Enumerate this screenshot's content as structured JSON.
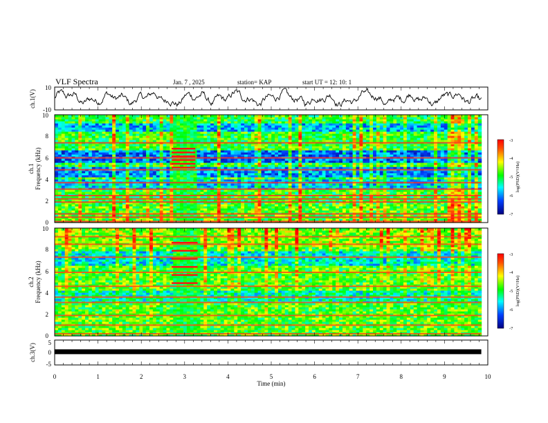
{
  "header": {
    "title": "VLF Spectra",
    "date": "Jan. 7 , 2025",
    "station": "station= KAP",
    "start": "start UT =   12: 10: 1"
  },
  "chart_data": [
    {
      "type": "line",
      "name": "ch1-waveform",
      "ylabel": "ch.1(V)",
      "ylim": [
        -10,
        10
      ],
      "yticks": [
        "10",
        "-10"
      ],
      "xlim": [
        0,
        9.85
      ],
      "note": "noisy voltage trace oscillating roughly between -7 and +8 V"
    },
    {
      "type": "heatmap",
      "name": "ch1-spectrogram",
      "ylabel": "ch.1",
      "ylabel2": "Frequency (kHz)",
      "ylim": [
        0,
        10
      ],
      "yticks": [
        "0",
        "2",
        "4",
        "6",
        "8",
        "10"
      ],
      "xlim": [
        0,
        9.85
      ],
      "colorbar": {
        "label": "log(PSD)(V²/Hz)",
        "ticks": [
          "-3",
          "-4",
          "-5",
          "-6",
          "-7"
        ],
        "range": [
          -7,
          -3
        ]
      },
      "bands_khz": [
        0.1,
        0.5,
        0.8,
        1.9,
        2.2,
        2.5,
        3.1,
        3.7,
        4.9,
        6.0,
        7.4
      ],
      "burst_minutes": [
        2.7,
        3.25
      ]
    },
    {
      "type": "heatmap",
      "name": "ch2-spectrogram",
      "ylabel": "ch.2",
      "ylabel2": "Frequency (kHz)",
      "ylim": [
        0,
        10
      ],
      "yticks": [
        "0",
        "2",
        "4",
        "6",
        "8",
        "10"
      ],
      "xlim": [
        0,
        9.85
      ],
      "colorbar": {
        "label": "log(PSD)(V²/Hz)",
        "ticks": [
          "-3",
          "-4",
          "-5",
          "-6",
          "-7"
        ],
        "range": [
          -7,
          -3
        ]
      },
      "bands_khz": [
        0.2,
        1.0,
        1.9,
        3.1,
        3.6,
        4.6,
        5.9,
        7.3,
        8.5,
        9.2
      ],
      "burst_minutes": [
        2.7,
        3.3
      ]
    },
    {
      "type": "line",
      "name": "ch3-level",
      "ylabel": "ch.3(V)",
      "ylim": [
        -5,
        5
      ],
      "yticks": [
        "5",
        "0",
        "-5"
      ],
      "value_v": 0.3,
      "xlim": [
        0,
        9.85
      ]
    }
  ],
  "xaxis": {
    "label": "Time  (min)",
    "ticks": [
      "0",
      "1",
      "2",
      "3",
      "4",
      "5",
      "6",
      "7",
      "8",
      "9",
      "10"
    ],
    "range": [
      0,
      10
    ]
  }
}
